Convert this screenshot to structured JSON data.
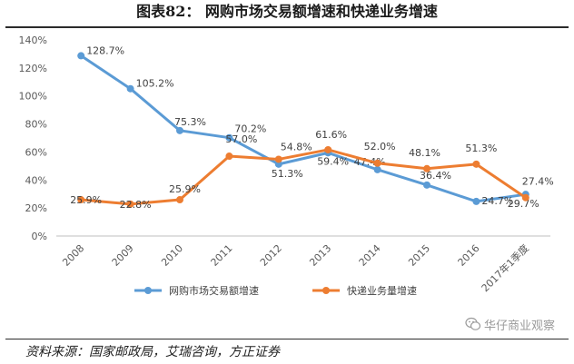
{
  "caption": "图表82：  网购市场交易额增速和快递业务增速",
  "source": "资料来源：国家邮政局，艾瑞咨询，方正证券",
  "watermark": {
    "icon": "wechat-icon",
    "text": "华仔商业观察"
  },
  "chart_data": {
    "type": "line",
    "categories": [
      "2008",
      "2009",
      "2010",
      "2011",
      "2012",
      "2013",
      "2014",
      "2015",
      "2016",
      "2017年1季度"
    ],
    "ylim": [
      0,
      140
    ],
    "ytick_step": 20,
    "ytick_suffix": "%",
    "grid": false,
    "legend_position": "bottom",
    "series": [
      {
        "name": "网购市场交易额增速",
        "color": "#5B9BD5",
        "values": [
          128.7,
          105.2,
          75.3,
          70.2,
          51.3,
          59.4,
          47.4,
          36.4,
          24.7,
          29.7
        ],
        "labels": [
          "128.7%",
          "105.2%",
          "75.3%",
          "70.2%",
          "51.3%",
          "59.4%",
          "47.4%",
          "36.4%",
          "24.7%",
          "29.7%"
        ]
      },
      {
        "name": "快递业务量增速",
        "color": "#ED7D31",
        "values": [
          25.9,
          22.8,
          25.9,
          57.0,
          54.8,
          61.6,
          52.0,
          48.1,
          51.3,
          27.4
        ],
        "labels": [
          "25.9%",
          "22.8%",
          "25.9%",
          "57.0%",
          "54.8%",
          "61.6%",
          "52.0%",
          "48.1%",
          "51.3%",
          "27.4%"
        ]
      }
    ]
  }
}
